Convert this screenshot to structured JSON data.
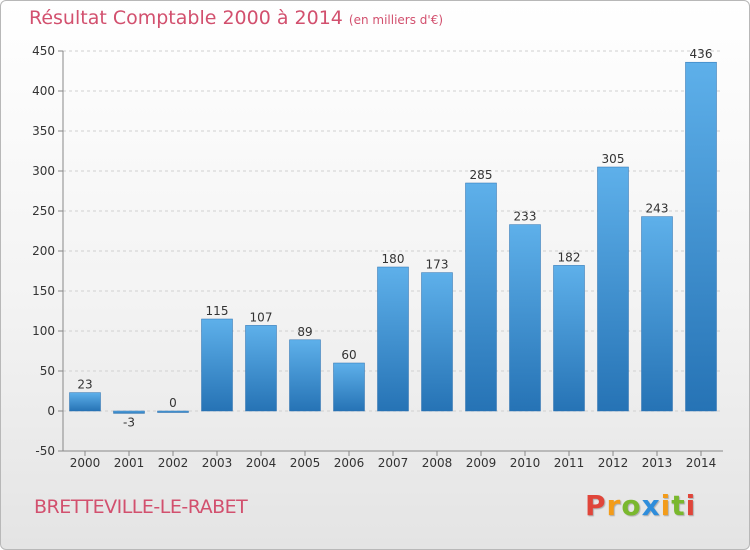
{
  "chart_data": {
    "type": "bar",
    "title": "Résultat Comptable 2000 à 2014",
    "subtitle": "(en milliers d'€)",
    "categories": [
      "2000",
      "2001",
      "2002",
      "2003",
      "2004",
      "2005",
      "2006",
      "2007",
      "2008",
      "2009",
      "2010",
      "2011",
      "2012",
      "2013",
      "2014"
    ],
    "values": [
      23,
      -3,
      0,
      115,
      107,
      89,
      60,
      180,
      173,
      285,
      233,
      182,
      305,
      243,
      436
    ],
    "ylim": [
      -50,
      450
    ],
    "yticks": [
      -50,
      0,
      50,
      100,
      150,
      200,
      250,
      300,
      350,
      400,
      450
    ],
    "grid": true,
    "xlabel": "",
    "ylabel": ""
  },
  "footer": {
    "commune": "BRETTEVILLE-LE-RABET",
    "logo_letters": [
      "P",
      "r",
      "o",
      "x",
      "i",
      "t",
      "i"
    ]
  },
  "colors": {
    "title": "#d2506e",
    "bar_light": "#5eb0ea",
    "bar_dark": "#2673b5",
    "grid": "#d0d0d0",
    "axis_text": "#333333",
    "logo": [
      "#e0453a",
      "#f39c1a",
      "#7ab82e",
      "#2f8ddb",
      "#f39c1a",
      "#7ab82e",
      "#e0453a"
    ]
  }
}
